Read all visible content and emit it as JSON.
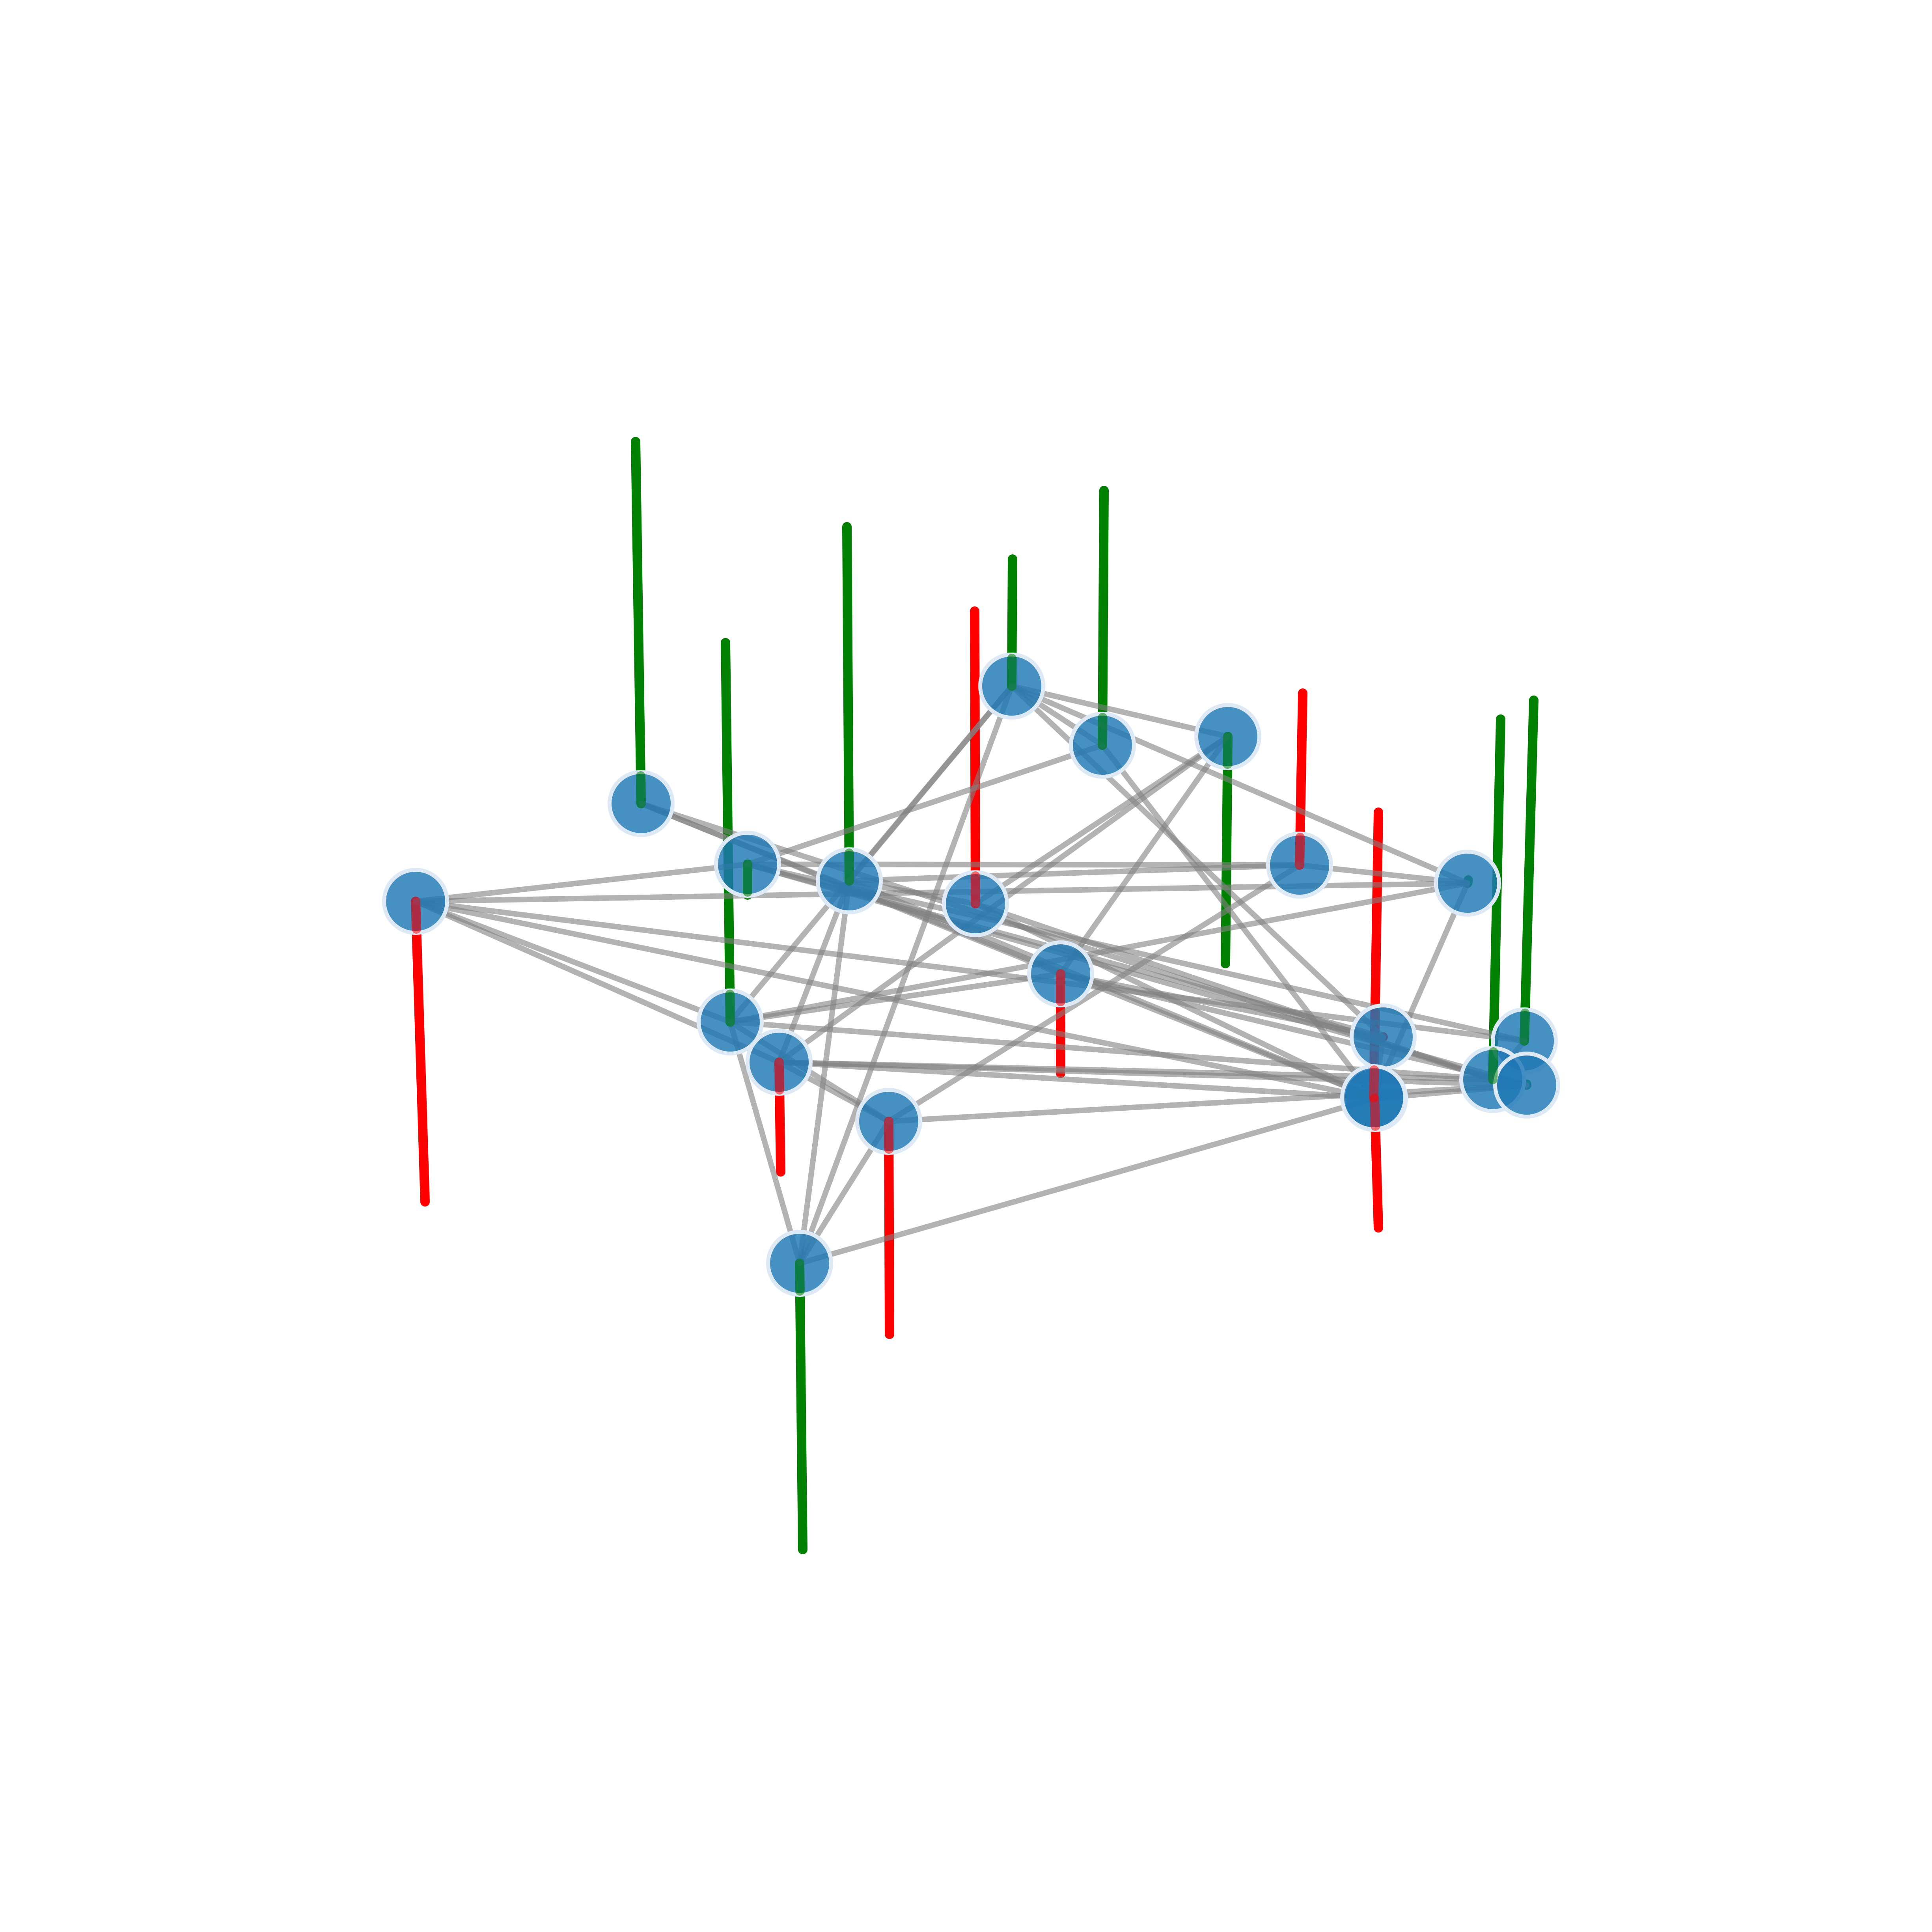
{
  "colors": {
    "background": "#ffffff",
    "node_fill": "#1f77b4",
    "node_stroke": "#dde9f5",
    "edge": "#808080",
    "stem_positive": "#008000",
    "stem_negative": "#ff0000"
  },
  "nodes": [
    {
      "id": 0,
      "stem": "positive"
    },
    {
      "id": 1,
      "stem": "negative"
    },
    {
      "id": 2,
      "stem": "positive"
    },
    {
      "id": 3,
      "stem": "positive"
    },
    {
      "id": 4,
      "stem": "negative"
    },
    {
      "id": 5,
      "stem": "positive"
    },
    {
      "id": 6,
      "stem": "positive"
    },
    {
      "id": 7,
      "stem": "positive"
    },
    {
      "id": 8,
      "stem": "negative"
    },
    {
      "id": 9,
      "stem": "positive"
    },
    {
      "id": 10,
      "stem": "negative"
    },
    {
      "id": 11,
      "stem": "positive"
    },
    {
      "id": 12,
      "stem": "negative"
    },
    {
      "id": 13,
      "stem": "negative"
    },
    {
      "id": 14,
      "stem": "positive"
    },
    {
      "id": 15,
      "stem": "negative"
    },
    {
      "id": 16,
      "stem": "negative"
    },
    {
      "id": 17,
      "stem": "negative"
    },
    {
      "id": 18,
      "stem": "positive"
    },
    {
      "id": 19,
      "stem": "positive"
    },
    {
      "id": 20,
      "stem": "positive"
    }
  ],
  "edges": [
    [
      1,
      11
    ],
    [
      1,
      9
    ],
    [
      1,
      2
    ],
    [
      1,
      18
    ],
    [
      1,
      12
    ],
    [
      1,
      16
    ],
    [
      0,
      10
    ],
    [
      0,
      17
    ],
    [
      0,
      19
    ],
    [
      2,
      8
    ],
    [
      2,
      18
    ],
    [
      2,
      20
    ],
    [
      3,
      5
    ],
    [
      3,
      14
    ],
    [
      3,
      12
    ],
    [
      3,
      17
    ],
    [
      4,
      19
    ],
    [
      4,
      3
    ],
    [
      4,
      17
    ],
    [
      5,
      9
    ],
    [
      5,
      14
    ],
    [
      5,
      11
    ],
    [
      5,
      15
    ],
    [
      6,
      5
    ],
    [
      6,
      2
    ],
    [
      6,
      16
    ],
    [
      7,
      4
    ],
    [
      7,
      5
    ],
    [
      7,
      10
    ],
    [
      7,
      12
    ],
    [
      8,
      9
    ],
    [
      8,
      13
    ],
    [
      8,
      3
    ],
    [
      9,
      11
    ],
    [
      9,
      17
    ],
    [
      10,
      11
    ],
    [
      10,
      15
    ],
    [
      10,
      20
    ],
    [
      11,
      14
    ],
    [
      11,
      19
    ],
    [
      11,
      13
    ],
    [
      12,
      13
    ],
    [
      12,
      19
    ],
    [
      12,
      20
    ],
    [
      12,
      17
    ],
    [
      13,
      14
    ],
    [
      13,
      20
    ],
    [
      14,
      16
    ],
    [
      15,
      16
    ],
    [
      15,
      2
    ],
    [
      16,
      20
    ],
    [
      18,
      19
    ]
  ]
}
